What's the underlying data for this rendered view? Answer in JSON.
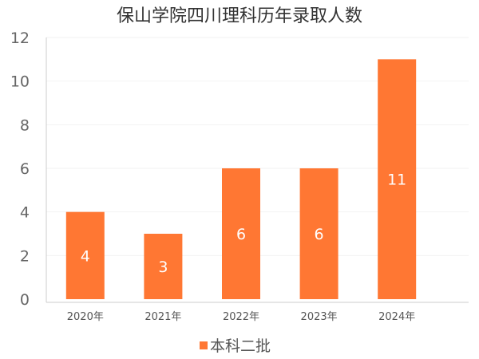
{
  "chart_data": {
    "type": "bar",
    "title": "保山学院四川理科历年录取人数",
    "categories": [
      "2020年",
      "2021年",
      "2022年",
      "2023年",
      "2024年"
    ],
    "series": [
      {
        "name": "本科二批",
        "values": [
          4,
          3,
          6,
          6,
          11
        ],
        "color": "#ff7733"
      }
    ],
    "ylim": [
      0,
      12
    ],
    "yticks": [
      0,
      2,
      4,
      6,
      8,
      10,
      12
    ],
    "grid": true,
    "legend_position": "bottom-center",
    "data_labels": true
  }
}
